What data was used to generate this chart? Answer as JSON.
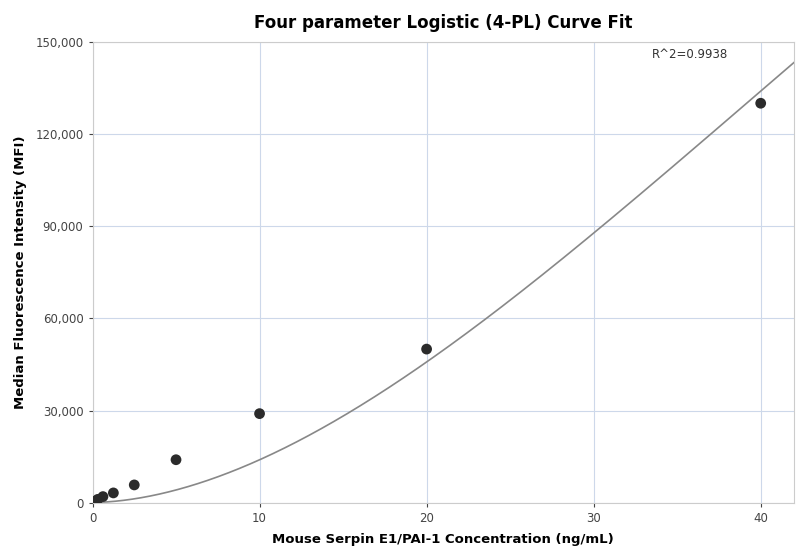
{
  "title": "Four parameter Logistic (4-PL) Curve Fit",
  "xlabel": "Mouse Serpin E1/PAI-1 Concentration (ng/mL)",
  "ylabel": "Median Fluorescence Intensity (MFI)",
  "scatter_x": [
    0.156,
    0.313,
    0.625,
    1.25,
    2.5,
    5.0,
    10.0,
    20.0,
    40.0
  ],
  "scatter_y": [
    500,
    1100,
    2000,
    3200,
    5800,
    14000,
    29000,
    50000,
    130000
  ],
  "xlim": [
    0,
    42
  ],
  "ylim": [
    0,
    150000
  ],
  "yticks": [
    0,
    30000,
    60000,
    90000,
    120000,
    150000
  ],
  "ytick_labels": [
    "0",
    "30,000",
    "60,000",
    "90,000",
    "120,000",
    "150,000"
  ],
  "xticks": [
    0,
    10,
    20,
    30,
    40
  ],
  "r_squared": "R^2=0.9938",
  "r_sq_x": 33.5,
  "r_sq_y": 148000,
  "dot_color": "#2b2b2b",
  "dot_size": 60,
  "curve_color": "#888888",
  "grid_color": "#cdd8ea",
  "background_color": "#ffffff",
  "title_fontsize": 12,
  "label_fontsize": 9.5,
  "tick_fontsize": 8.5
}
